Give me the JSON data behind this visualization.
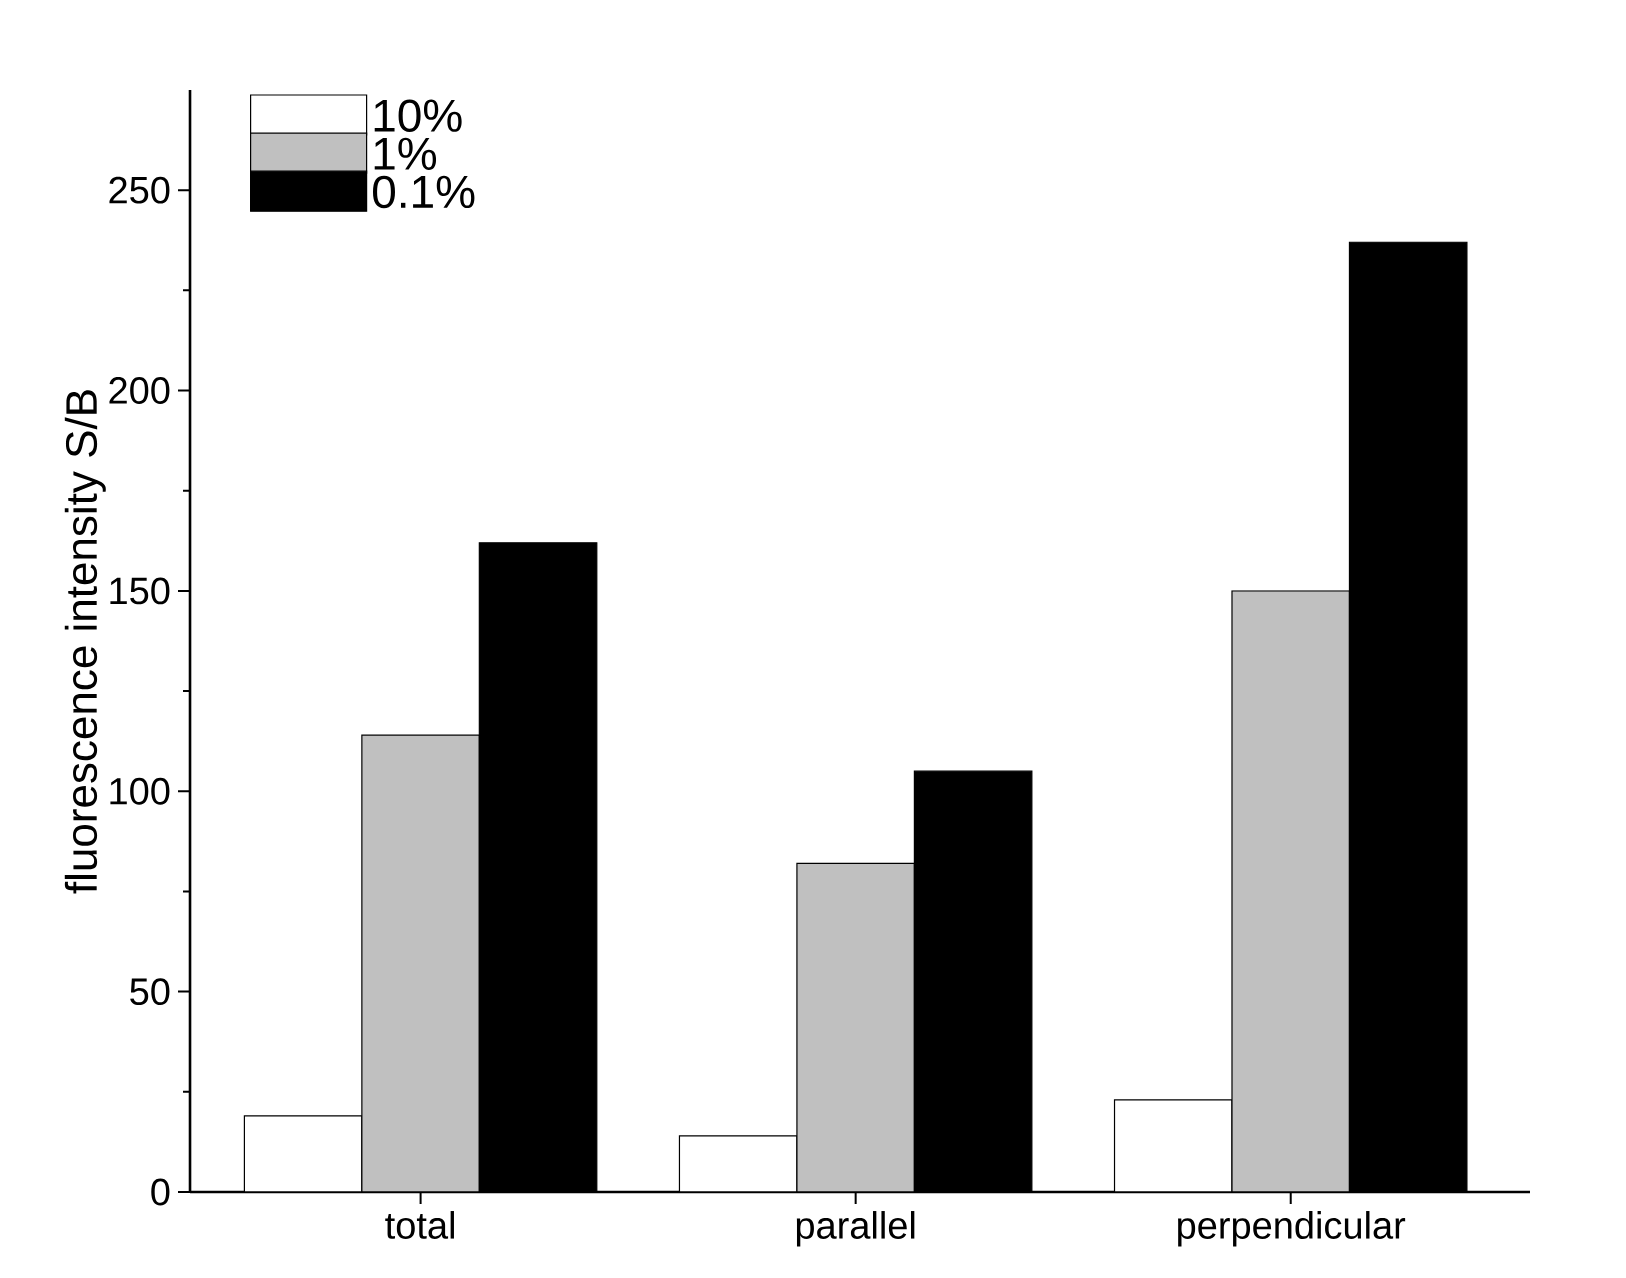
{
  "chart_data": {
    "type": "bar",
    "ylabel": "fluorescence intensity S/B",
    "categories": [
      "total",
      "parallel",
      "perpendicular"
    ],
    "series": [
      {
        "name": "10%",
        "color": "#ffffff",
        "values": [
          19,
          14,
          23
        ]
      },
      {
        "name": "1%",
        "color": "#c0c0c0",
        "values": [
          114,
          82,
          150
        ]
      },
      {
        "name": "0.1%",
        "color": "#000000",
        "values": [
          162,
          105,
          237
        ]
      }
    ],
    "ylim": [
      0,
      275
    ],
    "yticks": [
      0,
      50,
      100,
      150,
      200,
      250
    ],
    "grid": false,
    "legend": "top left"
  }
}
